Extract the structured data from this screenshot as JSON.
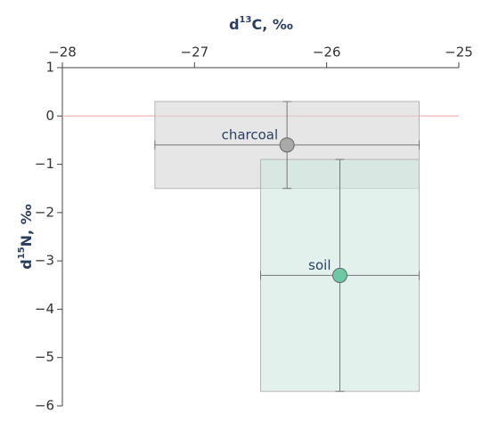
{
  "chart_data": {
    "type": "scatter",
    "x_label": {
      "prefix": "d",
      "sup": "13",
      "suffix": "C, ‰"
    },
    "y_label": {
      "prefix": "d",
      "sup": "15",
      "suffix": "N, ‰"
    },
    "xlim": [
      -28,
      -25
    ],
    "xticks": [
      {
        "value": -28,
        "label": "−28"
      },
      {
        "value": -27,
        "label": "−27"
      },
      {
        "value": -26,
        "label": "−26"
      },
      {
        "value": -25,
        "label": "−25"
      }
    ],
    "ylim": [
      1,
      -6
    ],
    "yticks": [
      1,
      0,
      {
        "value": -1,
        "label": "−1"
      },
      {
        "value": -2,
        "label": "−2"
      },
      {
        "value": -3,
        "label": "−3"
      },
      {
        "value": -4,
        "label": "−4"
      },
      {
        "value": -5,
        "label": "−5"
      },
      {
        "value": -6,
        "label": "−6"
      }
    ],
    "zeroline": true,
    "series": [
      {
        "name": "charcoal",
        "color": "#a9a9a9",
        "box_color": "#d6d6d6",
        "x": [
          -26.3
        ],
        "values": [
          -0.6
        ],
        "x_error": [
          1.0
        ],
        "y_error": [
          0.9
        ]
      },
      {
        "name": "soil",
        "color": "#6cc9a6",
        "box_color": "#cfe8dd",
        "x": [
          -25.9
        ],
        "values": [
          -3.3
        ],
        "x_error": [
          0.6
        ],
        "y_error": [
          2.4
        ]
      }
    ]
  }
}
